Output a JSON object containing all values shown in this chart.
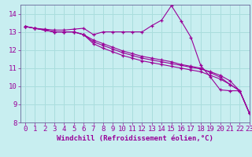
{
  "title": "",
  "xlabel": "Windchill (Refroidissement éolien,°C)",
  "ylabel": "",
  "background_color": "#c8eef0",
  "grid_color": "#aadddd",
  "line_color": "#990099",
  "xlim": [
    -0.5,
    23
  ],
  "ylim": [
    8,
    14.5
  ],
  "yticks": [
    8,
    9,
    10,
    11,
    12,
    13,
    14
  ],
  "xticks": [
    0,
    1,
    2,
    3,
    4,
    5,
    6,
    7,
    8,
    9,
    10,
    11,
    12,
    13,
    14,
    15,
    16,
    17,
    18,
    19,
    20,
    21,
    22,
    23
  ],
  "lines": [
    [
      13.3,
      13.2,
      13.15,
      13.1,
      13.1,
      13.15,
      13.2,
      12.85,
      13.0,
      13.0,
      13.0,
      13.0,
      13.0,
      13.35,
      13.65,
      14.45,
      13.6,
      12.7,
      11.15,
      10.5,
      9.8,
      9.75,
      9.75,
      8.5
    ],
    [
      13.3,
      13.2,
      13.1,
      13.0,
      13.0,
      13.0,
      12.85,
      12.55,
      12.35,
      12.15,
      11.95,
      11.8,
      11.65,
      11.55,
      11.45,
      11.35,
      11.2,
      11.1,
      11.0,
      10.75,
      10.5,
      10.1,
      9.75,
      8.5
    ],
    [
      13.3,
      13.2,
      13.1,
      13.0,
      13.0,
      13.0,
      12.85,
      12.45,
      12.25,
      12.05,
      11.85,
      11.7,
      11.55,
      11.45,
      11.35,
      11.25,
      11.15,
      11.05,
      10.95,
      10.8,
      10.6,
      10.3,
      9.75,
      8.5
    ],
    [
      13.3,
      13.2,
      13.1,
      13.0,
      13.0,
      13.0,
      12.85,
      12.35,
      12.1,
      11.9,
      11.7,
      11.55,
      11.4,
      11.3,
      11.2,
      11.1,
      11.0,
      10.9,
      10.8,
      10.6,
      10.4,
      10.1,
      9.75,
      8.5
    ]
  ],
  "tick_fontsize": 6.5,
  "xlabel_fontsize": 6.5,
  "spine_color": "#666699"
}
